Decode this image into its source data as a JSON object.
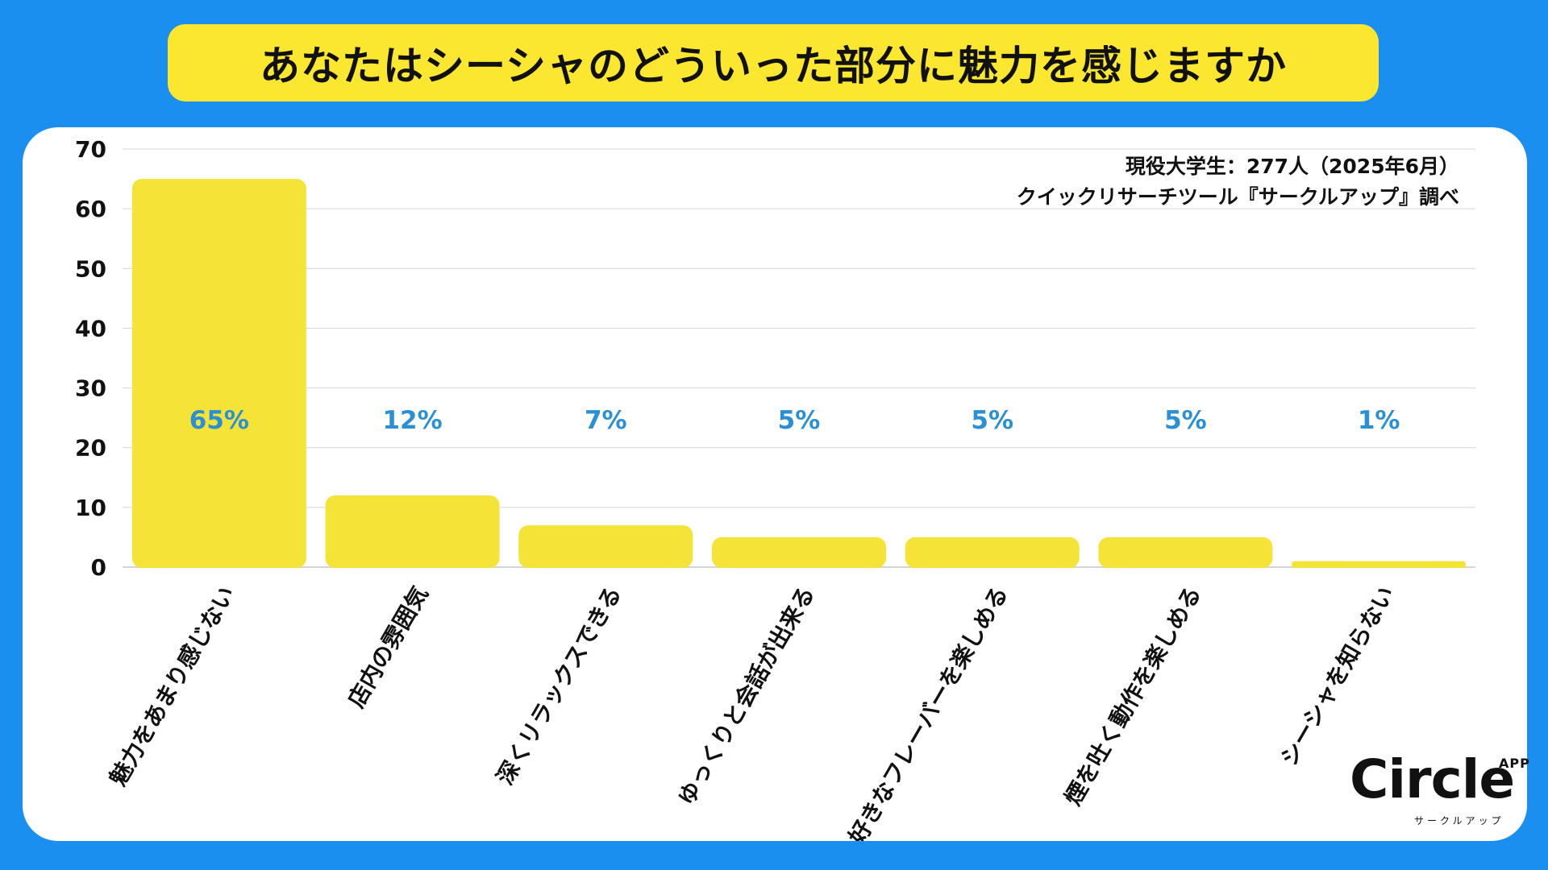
{
  "title": "あなたはシーシャのどういった部分に魅力を感じますか",
  "source": {
    "line1": "現役大学生：277人（2025年6月）",
    "line2": "クイックリサーチツール『サークルアップ』調べ"
  },
  "logo": {
    "main": "Circle",
    "app": "APP",
    "sub": "サークルアップ"
  },
  "colors": {
    "background": "#1a8ff0",
    "title_bar": "#fbe72f",
    "bar": "#f5e437",
    "data_label": "#2b8fd6",
    "grid": "#d4d4d4"
  },
  "chart_data": {
    "type": "bar",
    "categories": [
      "魅力をあまり感じない",
      "店内の雰囲気",
      "深くリラックスできる",
      "ゆっくりと会話が出来る",
      "好きなフレーバーを楽しめる",
      "煙を吐く動作を楽しめる",
      "シーシャを知らない"
    ],
    "values": [
      65,
      12,
      7,
      5,
      5,
      5,
      1
    ],
    "data_labels": [
      "65%",
      "12%",
      "7%",
      "5%",
      "5%",
      "5%",
      "1%"
    ],
    "ylim": [
      0,
      70
    ],
    "yticks": [
      0,
      10,
      20,
      30,
      40,
      50,
      60,
      70
    ],
    "grid": true
  }
}
